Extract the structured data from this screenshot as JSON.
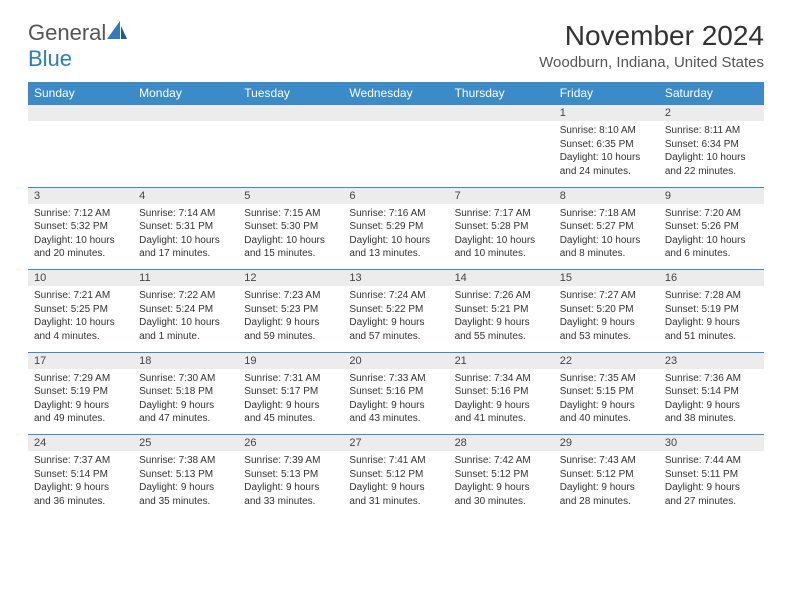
{
  "logo": {
    "general": "General",
    "blue": "Blue"
  },
  "title": "November 2024",
  "location": "Woodburn, Indiana, United States",
  "colors": {
    "header_bg": "#3b8bc9",
    "header_text": "#ffffff",
    "daynum_bg": "#ececec",
    "border": "#3b8bc9",
    "logo_blue": "#2e7cc0",
    "body_text": "#333333"
  },
  "day_headers": [
    "Sunday",
    "Monday",
    "Tuesday",
    "Wednesday",
    "Thursday",
    "Friday",
    "Saturday"
  ],
  "weeks": [
    [
      null,
      null,
      null,
      null,
      null,
      {
        "n": "1",
        "sr": "Sunrise: 8:10 AM",
        "ss": "Sunset: 6:35 PM",
        "dl": "Daylight: 10 hours and 24 minutes."
      },
      {
        "n": "2",
        "sr": "Sunrise: 8:11 AM",
        "ss": "Sunset: 6:34 PM",
        "dl": "Daylight: 10 hours and 22 minutes."
      }
    ],
    [
      {
        "n": "3",
        "sr": "Sunrise: 7:12 AM",
        "ss": "Sunset: 5:32 PM",
        "dl": "Daylight: 10 hours and 20 minutes."
      },
      {
        "n": "4",
        "sr": "Sunrise: 7:14 AM",
        "ss": "Sunset: 5:31 PM",
        "dl": "Daylight: 10 hours and 17 minutes."
      },
      {
        "n": "5",
        "sr": "Sunrise: 7:15 AM",
        "ss": "Sunset: 5:30 PM",
        "dl": "Daylight: 10 hours and 15 minutes."
      },
      {
        "n": "6",
        "sr": "Sunrise: 7:16 AM",
        "ss": "Sunset: 5:29 PM",
        "dl": "Daylight: 10 hours and 13 minutes."
      },
      {
        "n": "7",
        "sr": "Sunrise: 7:17 AM",
        "ss": "Sunset: 5:28 PM",
        "dl": "Daylight: 10 hours and 10 minutes."
      },
      {
        "n": "8",
        "sr": "Sunrise: 7:18 AM",
        "ss": "Sunset: 5:27 PM",
        "dl": "Daylight: 10 hours and 8 minutes."
      },
      {
        "n": "9",
        "sr": "Sunrise: 7:20 AM",
        "ss": "Sunset: 5:26 PM",
        "dl": "Daylight: 10 hours and 6 minutes."
      }
    ],
    [
      {
        "n": "10",
        "sr": "Sunrise: 7:21 AM",
        "ss": "Sunset: 5:25 PM",
        "dl": "Daylight: 10 hours and 4 minutes."
      },
      {
        "n": "11",
        "sr": "Sunrise: 7:22 AM",
        "ss": "Sunset: 5:24 PM",
        "dl": "Daylight: 10 hours and 1 minute."
      },
      {
        "n": "12",
        "sr": "Sunrise: 7:23 AM",
        "ss": "Sunset: 5:23 PM",
        "dl": "Daylight: 9 hours and 59 minutes."
      },
      {
        "n": "13",
        "sr": "Sunrise: 7:24 AM",
        "ss": "Sunset: 5:22 PM",
        "dl": "Daylight: 9 hours and 57 minutes."
      },
      {
        "n": "14",
        "sr": "Sunrise: 7:26 AM",
        "ss": "Sunset: 5:21 PM",
        "dl": "Daylight: 9 hours and 55 minutes."
      },
      {
        "n": "15",
        "sr": "Sunrise: 7:27 AM",
        "ss": "Sunset: 5:20 PM",
        "dl": "Daylight: 9 hours and 53 minutes."
      },
      {
        "n": "16",
        "sr": "Sunrise: 7:28 AM",
        "ss": "Sunset: 5:19 PM",
        "dl": "Daylight: 9 hours and 51 minutes."
      }
    ],
    [
      {
        "n": "17",
        "sr": "Sunrise: 7:29 AM",
        "ss": "Sunset: 5:19 PM",
        "dl": "Daylight: 9 hours and 49 minutes."
      },
      {
        "n": "18",
        "sr": "Sunrise: 7:30 AM",
        "ss": "Sunset: 5:18 PM",
        "dl": "Daylight: 9 hours and 47 minutes."
      },
      {
        "n": "19",
        "sr": "Sunrise: 7:31 AM",
        "ss": "Sunset: 5:17 PM",
        "dl": "Daylight: 9 hours and 45 minutes."
      },
      {
        "n": "20",
        "sr": "Sunrise: 7:33 AM",
        "ss": "Sunset: 5:16 PM",
        "dl": "Daylight: 9 hours and 43 minutes."
      },
      {
        "n": "21",
        "sr": "Sunrise: 7:34 AM",
        "ss": "Sunset: 5:16 PM",
        "dl": "Daylight: 9 hours and 41 minutes."
      },
      {
        "n": "22",
        "sr": "Sunrise: 7:35 AM",
        "ss": "Sunset: 5:15 PM",
        "dl": "Daylight: 9 hours and 40 minutes."
      },
      {
        "n": "23",
        "sr": "Sunrise: 7:36 AM",
        "ss": "Sunset: 5:14 PM",
        "dl": "Daylight: 9 hours and 38 minutes."
      }
    ],
    [
      {
        "n": "24",
        "sr": "Sunrise: 7:37 AM",
        "ss": "Sunset: 5:14 PM",
        "dl": "Daylight: 9 hours and 36 minutes."
      },
      {
        "n": "25",
        "sr": "Sunrise: 7:38 AM",
        "ss": "Sunset: 5:13 PM",
        "dl": "Daylight: 9 hours and 35 minutes."
      },
      {
        "n": "26",
        "sr": "Sunrise: 7:39 AM",
        "ss": "Sunset: 5:13 PM",
        "dl": "Daylight: 9 hours and 33 minutes."
      },
      {
        "n": "27",
        "sr": "Sunrise: 7:41 AM",
        "ss": "Sunset: 5:12 PM",
        "dl": "Daylight: 9 hours and 31 minutes."
      },
      {
        "n": "28",
        "sr": "Sunrise: 7:42 AM",
        "ss": "Sunset: 5:12 PM",
        "dl": "Daylight: 9 hours and 30 minutes."
      },
      {
        "n": "29",
        "sr": "Sunrise: 7:43 AM",
        "ss": "Sunset: 5:12 PM",
        "dl": "Daylight: 9 hours and 28 minutes."
      },
      {
        "n": "30",
        "sr": "Sunrise: 7:44 AM",
        "ss": "Sunset: 5:11 PM",
        "dl": "Daylight: 9 hours and 27 minutes."
      }
    ]
  ]
}
